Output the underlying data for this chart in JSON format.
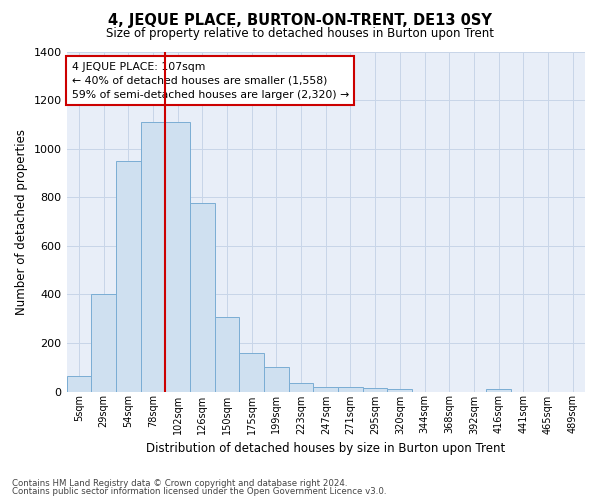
{
  "title": "4, JEQUE PLACE, BURTON-ON-TRENT, DE13 0SY",
  "subtitle": "Size of property relative to detached houses in Burton upon Trent",
  "xlabel": "Distribution of detached houses by size in Burton upon Trent",
  "ylabel": "Number of detached properties",
  "footer_line1": "Contains HM Land Registry data © Crown copyright and database right 2024.",
  "footer_line2": "Contains public sector information licensed under the Open Government Licence v3.0.",
  "bar_color": "#cfe0f0",
  "bar_edge_color": "#7aadd4",
  "grid_color": "#c8d5e8",
  "background_color": "#e8eef8",
  "annotation_box_color": "#cc0000",
  "vline_color": "#cc0000",
  "categories": [
    "5sqm",
    "29sqm",
    "54sqm",
    "78sqm",
    "102sqm",
    "126sqm",
    "150sqm",
    "175sqm",
    "199sqm",
    "223sqm",
    "247sqm",
    "271sqm",
    "295sqm",
    "320sqm",
    "344sqm",
    "368sqm",
    "392sqm",
    "416sqm",
    "441sqm",
    "465sqm",
    "489sqm"
  ],
  "values": [
    65,
    400,
    950,
    1110,
    1110,
    775,
    305,
    160,
    100,
    35,
    18,
    18,
    15,
    10,
    0,
    0,
    0,
    12,
    0,
    0,
    0
  ],
  "ylim": [
    0,
    1400
  ],
  "yticks": [
    0,
    200,
    400,
    600,
    800,
    1000,
    1200,
    1400
  ],
  "vline_x_index": 4,
  "annotation_text_line1": "4 JEQUE PLACE: 107sqm",
  "annotation_text_line2": "← 40% of detached houses are smaller (1,558)",
  "annotation_text_line3": "59% of semi-detached houses are larger (2,320) →"
}
